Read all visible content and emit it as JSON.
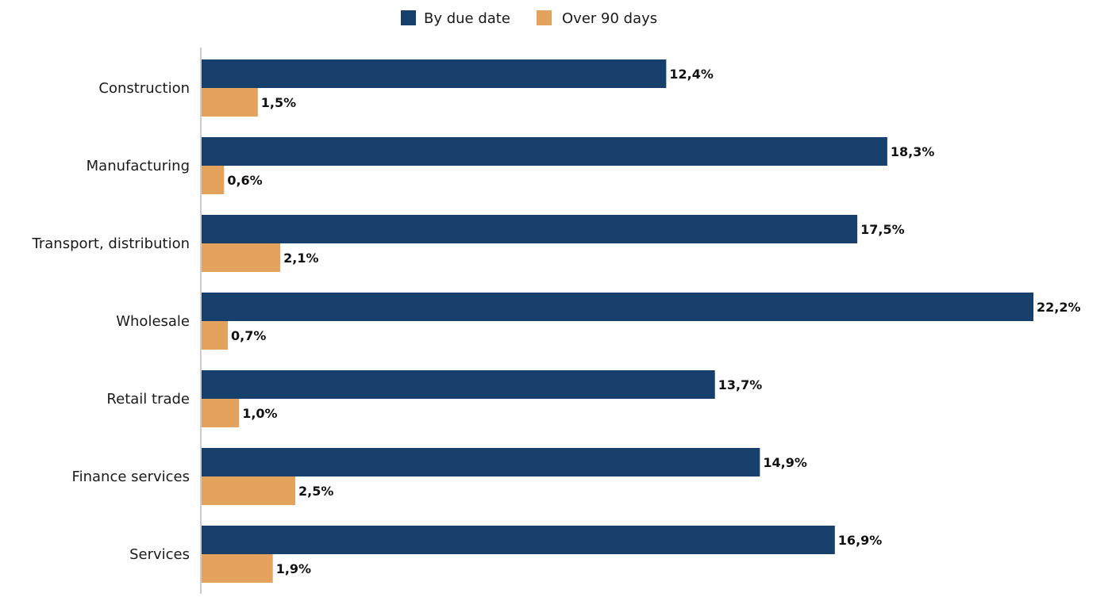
{
  "chart_data": {
    "type": "bar",
    "orientation": "horizontal",
    "title": "",
    "xlabel": "",
    "ylabel": "",
    "xlim": [
      0,
      22.2
    ],
    "grid": false,
    "legend_position": "top-center",
    "categories": [
      "Construction",
      "Manufacturing",
      "Transport, distribution",
      "Wholesale",
      "Retail trade",
      "Finance services",
      "Services"
    ],
    "series": [
      {
        "name": "By due date",
        "color": "#173f6b",
        "values": [
          12.4,
          18.3,
          17.5,
          22.2,
          13.7,
          14.9,
          16.9
        ],
        "labels": [
          "12,4%",
          "18,3%",
          "17,5%",
          "22,2%",
          "13,7%",
          "14,9%",
          "16,9%"
        ]
      },
      {
        "name": "Over 90 days",
        "color": "#e3a35c",
        "values": [
          1.5,
          0.6,
          2.1,
          0.7,
          1.0,
          2.5,
          1.9
        ],
        "labels": [
          "1,5%",
          "0,6%",
          "2,1%",
          "0,7%",
          "1,0%",
          "2,5%",
          "1,9%"
        ]
      }
    ],
    "axis_color": "#cccccc"
  }
}
